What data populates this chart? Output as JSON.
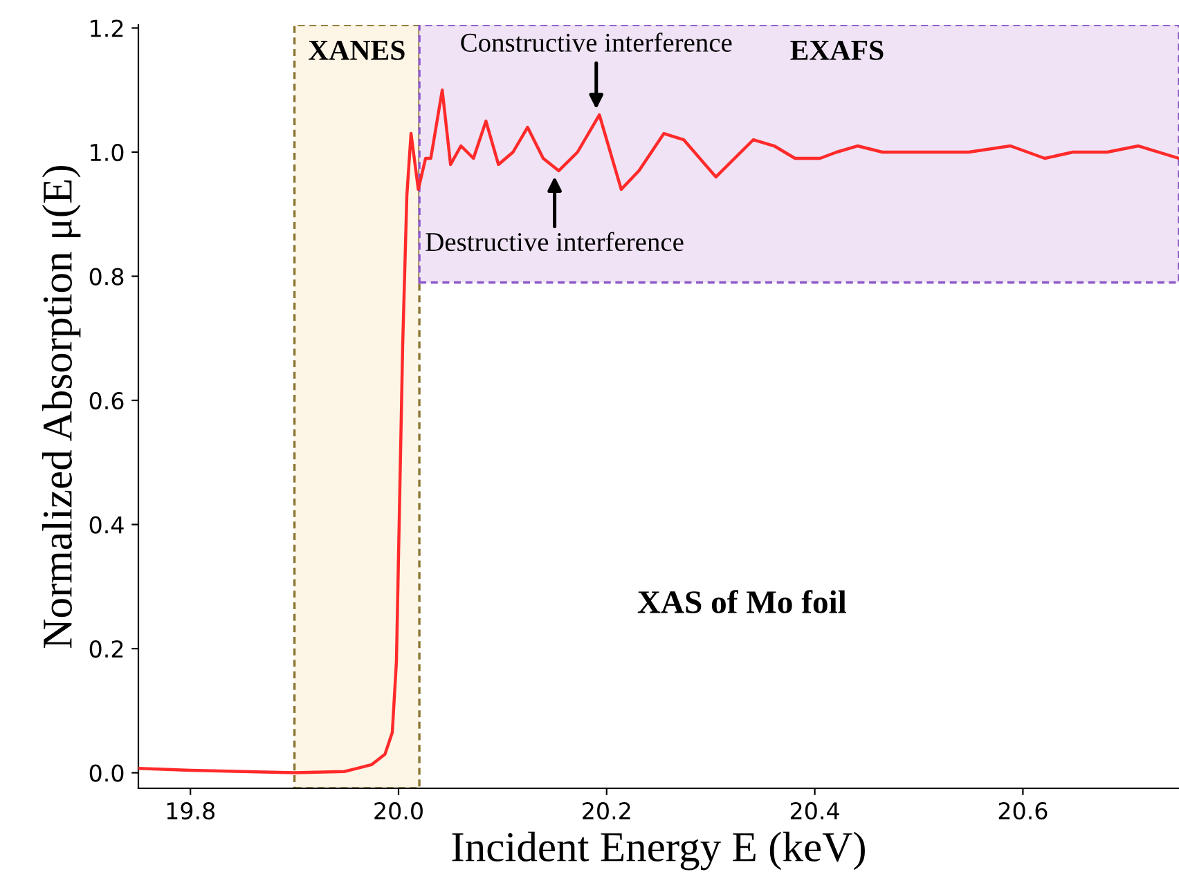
{
  "chart_data": {
    "type": "line",
    "xlabel": "Incident Energy E (keV)",
    "ylabel": "Normalized Absorption μ(E)",
    "x": [
      19.75,
      19.8,
      19.9,
      19.948,
      19.974,
      19.987,
      19.994,
      19.998,
      20.0,
      20.004,
      20.008,
      20.012,
      20.019,
      20.026,
      20.031,
      20.042,
      20.05,
      20.06,
      20.072,
      20.084,
      20.096,
      20.11,
      20.124,
      20.139,
      20.154,
      20.172,
      20.193,
      20.214,
      20.231,
      20.255,
      20.274,
      20.305,
      20.341,
      20.361,
      20.381,
      20.405,
      20.421,
      20.441,
      20.465,
      20.489,
      20.522,
      20.548,
      20.588,
      20.621,
      20.648,
      20.681,
      20.711,
      20.75
    ],
    "series": [
      {
        "color": "#ff2a2a",
        "values": [
          0.007,
          0.004,
          0,
          0.002,
          0.013,
          0.03,
          0.065,
          0.18,
          0.35,
          0.69,
          0.93,
          1.03,
          0.94,
          0.99,
          0.99,
          1.1,
          0.98,
          1.01,
          0.99,
          1.05,
          0.98,
          1.0,
          1.04,
          0.99,
          0.97,
          1.0,
          1.06,
          0.94,
          0.97,
          1.03,
          1.02,
          0.96,
          1.02,
          1.01,
          0.99,
          0.99,
          1.0,
          1.01,
          1.0,
          1.0,
          1.0,
          1.0,
          1.01,
          0.99,
          1.0,
          1.0,
          1.01,
          0.99
        ]
      }
    ],
    "xlim": [
      19.75,
      20.75
    ],
    "ylim": [
      -0.025,
      1.205
    ],
    "xticks": [
      19.8,
      {
        "value": 20.0,
        "label": "20.0"
      },
      20.2,
      20.4,
      20.6
    ],
    "yticks": [
      {
        "value": 0,
        "label": "0.0"
      },
      0.2,
      0.4,
      0.6,
      0.8,
      {
        "value": 1.0,
        "label": "1.0"
      },
      {
        "value": 1.2,
        "label": "1.2"
      }
    ],
    "bands": [
      {
        "axis": "x",
        "from": 19.9,
        "to": 20.02,
        "label": "XANES",
        "color": "#fdf5e6"
      },
      {
        "axis": "x",
        "from": 20.02,
        "to": 20.75,
        "label": "EXAFS",
        "color": "#efe3f5"
      }
    ],
    "annotations": [
      {
        "text": "Constructive interference",
        "x": 20.19,
        "y": 1.06
      },
      {
        "text": "Destructive interference",
        "x": 20.15,
        "y": 0.97
      },
      "XAS of Mo foil"
    ],
    "grid": false,
    "legend": false,
    "line_style": "solid",
    "marker": "none"
  }
}
